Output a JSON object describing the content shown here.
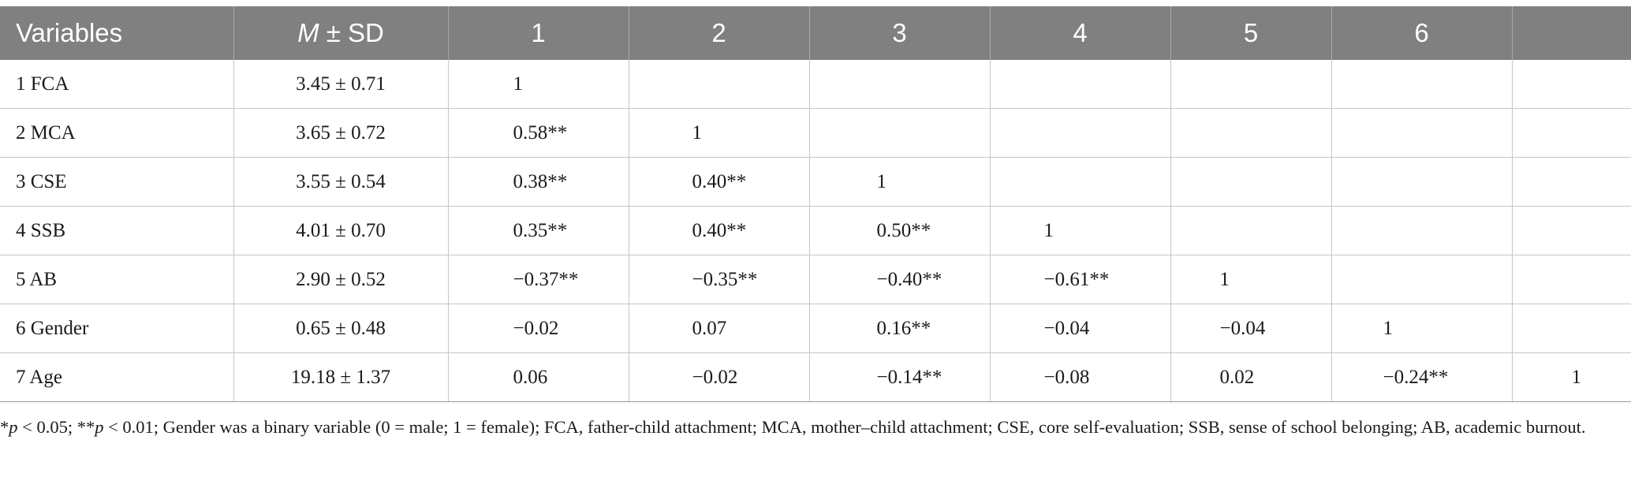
{
  "table": {
    "headers": {
      "variables": "Variables",
      "mean_sd_m": "M",
      "mean_sd_rest": " ± SD",
      "col1": "1",
      "col2": "2",
      "col3": "3",
      "col4": "4",
      "col5": "5",
      "col6": "6",
      "col7": ""
    },
    "rows": [
      {
        "variable": "1 FCA",
        "mean_sd": "3.45 ± 0.71",
        "c1": "1",
        "c2": "",
        "c3": "",
        "c4": "",
        "c5": "",
        "c6": "",
        "c7": ""
      },
      {
        "variable": "2 MCA",
        "mean_sd": "3.65 ± 0.72",
        "c1": "0.58**",
        "c2": "1",
        "c3": "",
        "c4": "",
        "c5": "",
        "c6": "",
        "c7": ""
      },
      {
        "variable": "3 CSE",
        "mean_sd": "3.55 ± 0.54",
        "c1": "0.38**",
        "c2": "0.40**",
        "c3": "1",
        "c4": "",
        "c5": "",
        "c6": "",
        "c7": ""
      },
      {
        "variable": "4 SSB",
        "mean_sd": "4.01 ± 0.70",
        "c1": "0.35**",
        "c2": "0.40**",
        "c3": "0.50**",
        "c4": "1",
        "c5": "",
        "c6": "",
        "c7": ""
      },
      {
        "variable": "5 AB",
        "mean_sd": "2.90 ± 0.52",
        "c1": "−0.37**",
        "c2": "−0.35**",
        "c3": "−0.40**",
        "c4": "−0.61**",
        "c5": "1",
        "c6": "",
        "c7": ""
      },
      {
        "variable": "6 Gender",
        "mean_sd": "0.65 ± 0.48",
        "c1": "−0.02",
        "c2": "0.07",
        "c3": "0.16**",
        "c4": "−0.04",
        "c5": "−0.04",
        "c6": "1",
        "c7": ""
      },
      {
        "variable": "7 Age",
        "mean_sd": "19.18 ± 1.37",
        "c1": "0.06",
        "c2": "−0.02",
        "c3": "−0.14**",
        "c4": "−0.08",
        "c5": "0.02",
        "c6": "−0.24**",
        "c7": "1"
      }
    ]
  },
  "footnote": {
    "star1": "*",
    "p1": "p",
    "part1": " < 0.05; **",
    "p2": "p",
    "part2": " < 0.01; Gender was a binary variable (0 = male; 1 = female); FCA, father-child attachment; MCA, mother–child attachment; CSE, core self-evaluation; SSB, sense of school belonging; AB, academic burnout."
  }
}
